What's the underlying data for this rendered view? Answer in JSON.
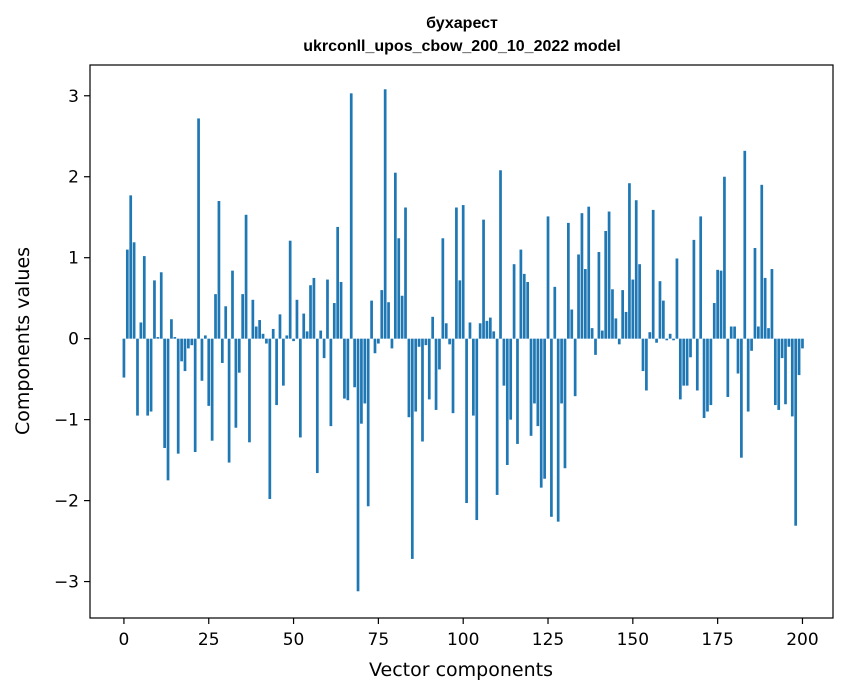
{
  "chart_data": {
    "type": "bar",
    "title": "бухарест",
    "subtitle": "ukrconll_upos_cbow_200_10_2022 model",
    "xlabel": "Vector components",
    "ylabel": "Components values",
    "xlim": [
      -10,
      209
    ],
    "ylim": [
      -3.45,
      3.38
    ],
    "xticks": [
      0,
      25,
      50,
      75,
      100,
      125,
      150,
      175,
      200
    ],
    "yticks": [
      -3,
      -2,
      -1,
      0,
      1,
      2,
      3
    ],
    "ytick_labels": [
      "−3",
      "−2",
      "−1",
      "0",
      "1",
      "2",
      "3"
    ],
    "grid": false,
    "bar_color": "#1f77b4",
    "values": [
      -0.48,
      1.1,
      1.77,
      1.19,
      -0.95,
      0.2,
      1.02,
      -0.95,
      -0.9,
      0.72,
      0.02,
      0.82,
      -1.35,
      -1.75,
      0.24,
      0.02,
      -1.42,
      -0.28,
      -0.4,
      -0.12,
      -0.08,
      -1.4,
      2.72,
      -0.52,
      0.04,
      -0.83,
      -1.26,
      0.55,
      1.7,
      -0.3,
      0.4,
      -1.53,
      0.84,
      -1.1,
      -0.42,
      0.55,
      1.53,
      -1.28,
      0.48,
      0.15,
      0.23,
      0.06,
      -0.06,
      -1.98,
      0.12,
      -0.82,
      0.3,
      -0.58,
      0.04,
      1.21,
      -0.03,
      0.48,
      -1.22,
      0.31,
      0.09,
      0.66,
      0.75,
      -1.66,
      0.1,
      -0.24,
      0.73,
      -1.08,
      0.44,
      1.38,
      0.7,
      -0.74,
      -0.76,
      3.03,
      -0.6,
      -3.12,
      -1.05,
      -0.8,
      -2.07,
      0.47,
      -0.18,
      -0.06,
      0.6,
      3.08,
      0.45,
      -0.12,
      2.05,
      1.24,
      0.53,
      1.62,
      -0.97,
      -2.72,
      -0.9,
      -0.1,
      -1.27,
      -0.08,
      -0.75,
      0.27,
      -0.88,
      -0.38,
      1.24,
      0.19,
      -0.07,
      -0.92,
      1.62,
      0.72,
      1.65,
      -2.03,
      0.2,
      -0.95,
      -2.24,
      0.19,
      1.47,
      0.22,
      0.26,
      0.09,
      -1.93,
      2.08,
      -0.58,
      -1.56,
      -1.0,
      0.92,
      -1.3,
      1.1,
      0.8,
      0.7,
      -1.2,
      -0.8,
      -1.08,
      -1.84,
      -1.73,
      1.51,
      -2.2,
      0.64,
      -2.26,
      -0.8,
      -1.6,
      1.43,
      0.36,
      -0.71,
      1.04,
      1.55,
      0.86,
      1.63,
      0.13,
      -0.2,
      1.07,
      0.1,
      1.33,
      1.57,
      0.61,
      0.25,
      -0.07,
      0.6,
      0.33,
      1.92,
      0.73,
      1.71,
      0.92,
      -0.4,
      -0.64,
      0.08,
      1.59,
      -0.05,
      0.71,
      0.47,
      -0.02,
      0.06,
      -0.02,
      0.99,
      -0.75,
      -0.58,
      -0.58,
      -0.23,
      1.22,
      -0.64,
      1.51,
      -0.98,
      -0.9,
      -0.82,
      0.44,
      0.85,
      0.84,
      2.0,
      -0.72,
      0.15,
      0.15,
      -0.43,
      -1.47,
      2.32,
      -0.9,
      -0.15,
      1.12,
      0.15,
      1.9,
      0.75,
      0.13,
      0.86,
      -0.82,
      -0.88,
      -0.24,
      -0.81,
      -0.1,
      -0.96,
      -2.31,
      -0.45,
      -0.12
    ]
  }
}
